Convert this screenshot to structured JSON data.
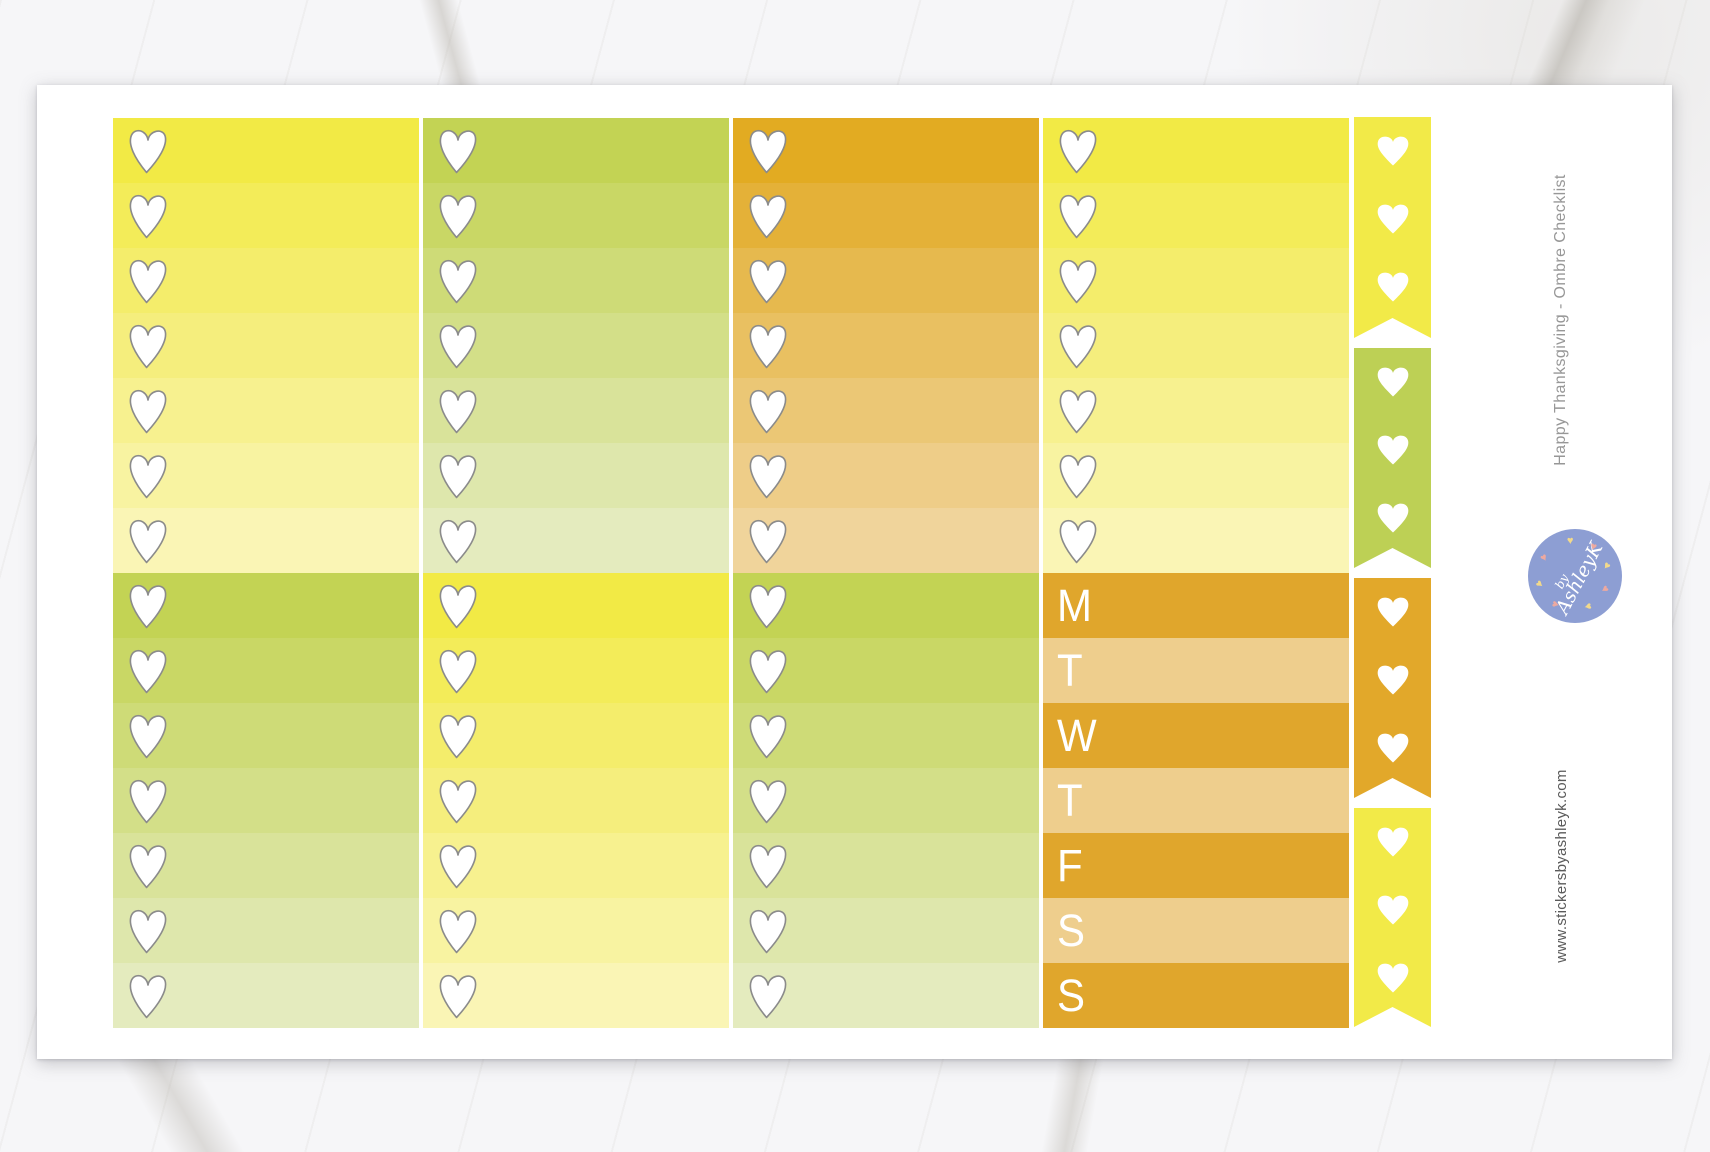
{
  "product": {
    "title": "Happy Thanksgiving - Ombre Checklist",
    "website": "www.stickersbyashleyk.com",
    "logo": {
      "prefix": "by",
      "name": "AshleyK"
    }
  },
  "colors": {
    "sheet_background": "#ffffff",
    "logo_background": "#8d9ed3",
    "logo_text": "#ffffff",
    "logo_heart_yellow": "#f2d98b",
    "logo_heart_salmon": "#eda9a0",
    "title_text": "#979797",
    "website_text": "#5a5a5a",
    "heart_outline": "#8b8b8b",
    "heart_fill": "#ffffff",
    "day_letter": "#ffffff",
    "days_dark": "#e0a62c",
    "days_light": "#eece8d",
    "palettes": {
      "yellow": [
        "#f2ea45",
        "#f3ec59",
        "#f4ed6b",
        "#f5ee7d",
        "#f7f18f",
        "#f8f3a1",
        "#faf5b5"
      ],
      "green": [
        "#c3d354",
        "#c9d765",
        "#cedb77",
        "#d3df88",
        "#d9e39a",
        "#dee7ac",
        "#e4ebbe"
      ],
      "orange": [
        "#e2ab22",
        "#e4b138",
        "#e6b94e",
        "#e9c061",
        "#ebc775",
        "#eecd88",
        "#f0d49b"
      ]
    },
    "flag_colors": {
      "yellow": "#f2ea48",
      "green": "#bdd055",
      "orange": "#e2a82a"
    }
  },
  "sticker_sheet": {
    "columns": [
      {
        "name": "column-1",
        "top_section": {
          "style": "checklist",
          "palette": "yellow",
          "rows": 7
        },
        "bottom_section": {
          "style": "checklist",
          "palette": "green",
          "rows": 7
        }
      },
      {
        "name": "column-2",
        "top_section": {
          "style": "checklist",
          "palette": "green",
          "rows": 7
        },
        "bottom_section": {
          "style": "checklist",
          "palette": "yellow",
          "rows": 7
        }
      },
      {
        "name": "column-3",
        "top_section": {
          "style": "checklist",
          "palette": "orange",
          "rows": 7
        },
        "bottom_section": {
          "style": "checklist",
          "palette": "green",
          "rows": 7
        }
      },
      {
        "name": "column-4",
        "top_section": {
          "style": "checklist",
          "palette": "yellow",
          "rows": 7
        },
        "bottom_section": {
          "style": "days",
          "letters": [
            "M",
            "T",
            "W",
            "T",
            "F",
            "S",
            "S"
          ],
          "pattern": [
            "dark",
            "light",
            "dark",
            "light",
            "dark",
            "light",
            "dark"
          ]
        }
      }
    ],
    "flags": [
      {
        "name": "flag-1",
        "color": "yellow",
        "hearts": 3
      },
      {
        "name": "flag-2",
        "color": "green",
        "hearts": 3
      },
      {
        "name": "flag-3",
        "color": "orange",
        "hearts": 3
      },
      {
        "name": "flag-4",
        "color": "yellow",
        "hearts": 3
      }
    ],
    "icons": {
      "checklist_checkbox": "heart-checkbox-icon",
      "flag_decoration": "heart-icon",
      "logo_decoration": "heart-icon"
    }
  }
}
